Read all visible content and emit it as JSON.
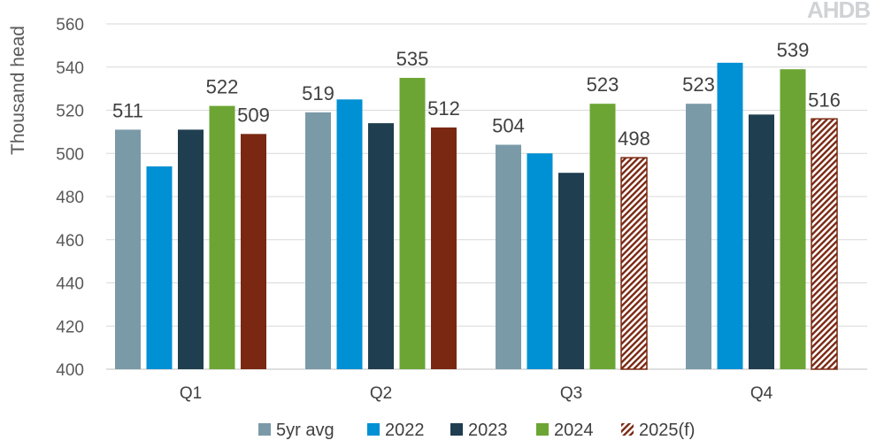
{
  "logo": {
    "text": "AHDB"
  },
  "chart_data": {
    "type": "bar",
    "ylabel": "Thousand head",
    "ylim": [
      400,
      560
    ],
    "yticks": [
      400,
      420,
      440,
      460,
      480,
      500,
      520,
      540,
      560
    ],
    "grid": true,
    "legend_position": "bottom",
    "categories": [
      "Q1",
      "Q2",
      "Q3",
      "Q4"
    ],
    "series": [
      {
        "name": "5yr avg",
        "color": "#7a9aa8",
        "pattern": "solid",
        "values": [
          511,
          519,
          504,
          523
        ],
        "labels": [
          "511",
          "519",
          "504",
          "523"
        ]
      },
      {
        "name": "2022",
        "color": "#0090d4",
        "pattern": "solid",
        "values": [
          494,
          525,
          500,
          542
        ],
        "labels": [
          "",
          "",
          "",
          ""
        ]
      },
      {
        "name": "2023",
        "color": "#1f3e4f",
        "pattern": "solid",
        "values": [
          511,
          514,
          491,
          518
        ],
        "labels": [
          "",
          "",
          "",
          ""
        ]
      },
      {
        "name": "2024",
        "color": "#6ca534",
        "pattern": "solid",
        "values": [
          522,
          535,
          523,
          539
        ],
        "labels": [
          "522",
          "535",
          "523",
          "539"
        ]
      },
      {
        "name": "2025(f)",
        "color": "#7a2812",
        "pattern": "solid-then-hatched",
        "hatched_categories": [
          "Q3",
          "Q4"
        ],
        "values": [
          509,
          512,
          498,
          516
        ],
        "labels": [
          "509",
          "512",
          "498",
          "516"
        ]
      }
    ]
  }
}
